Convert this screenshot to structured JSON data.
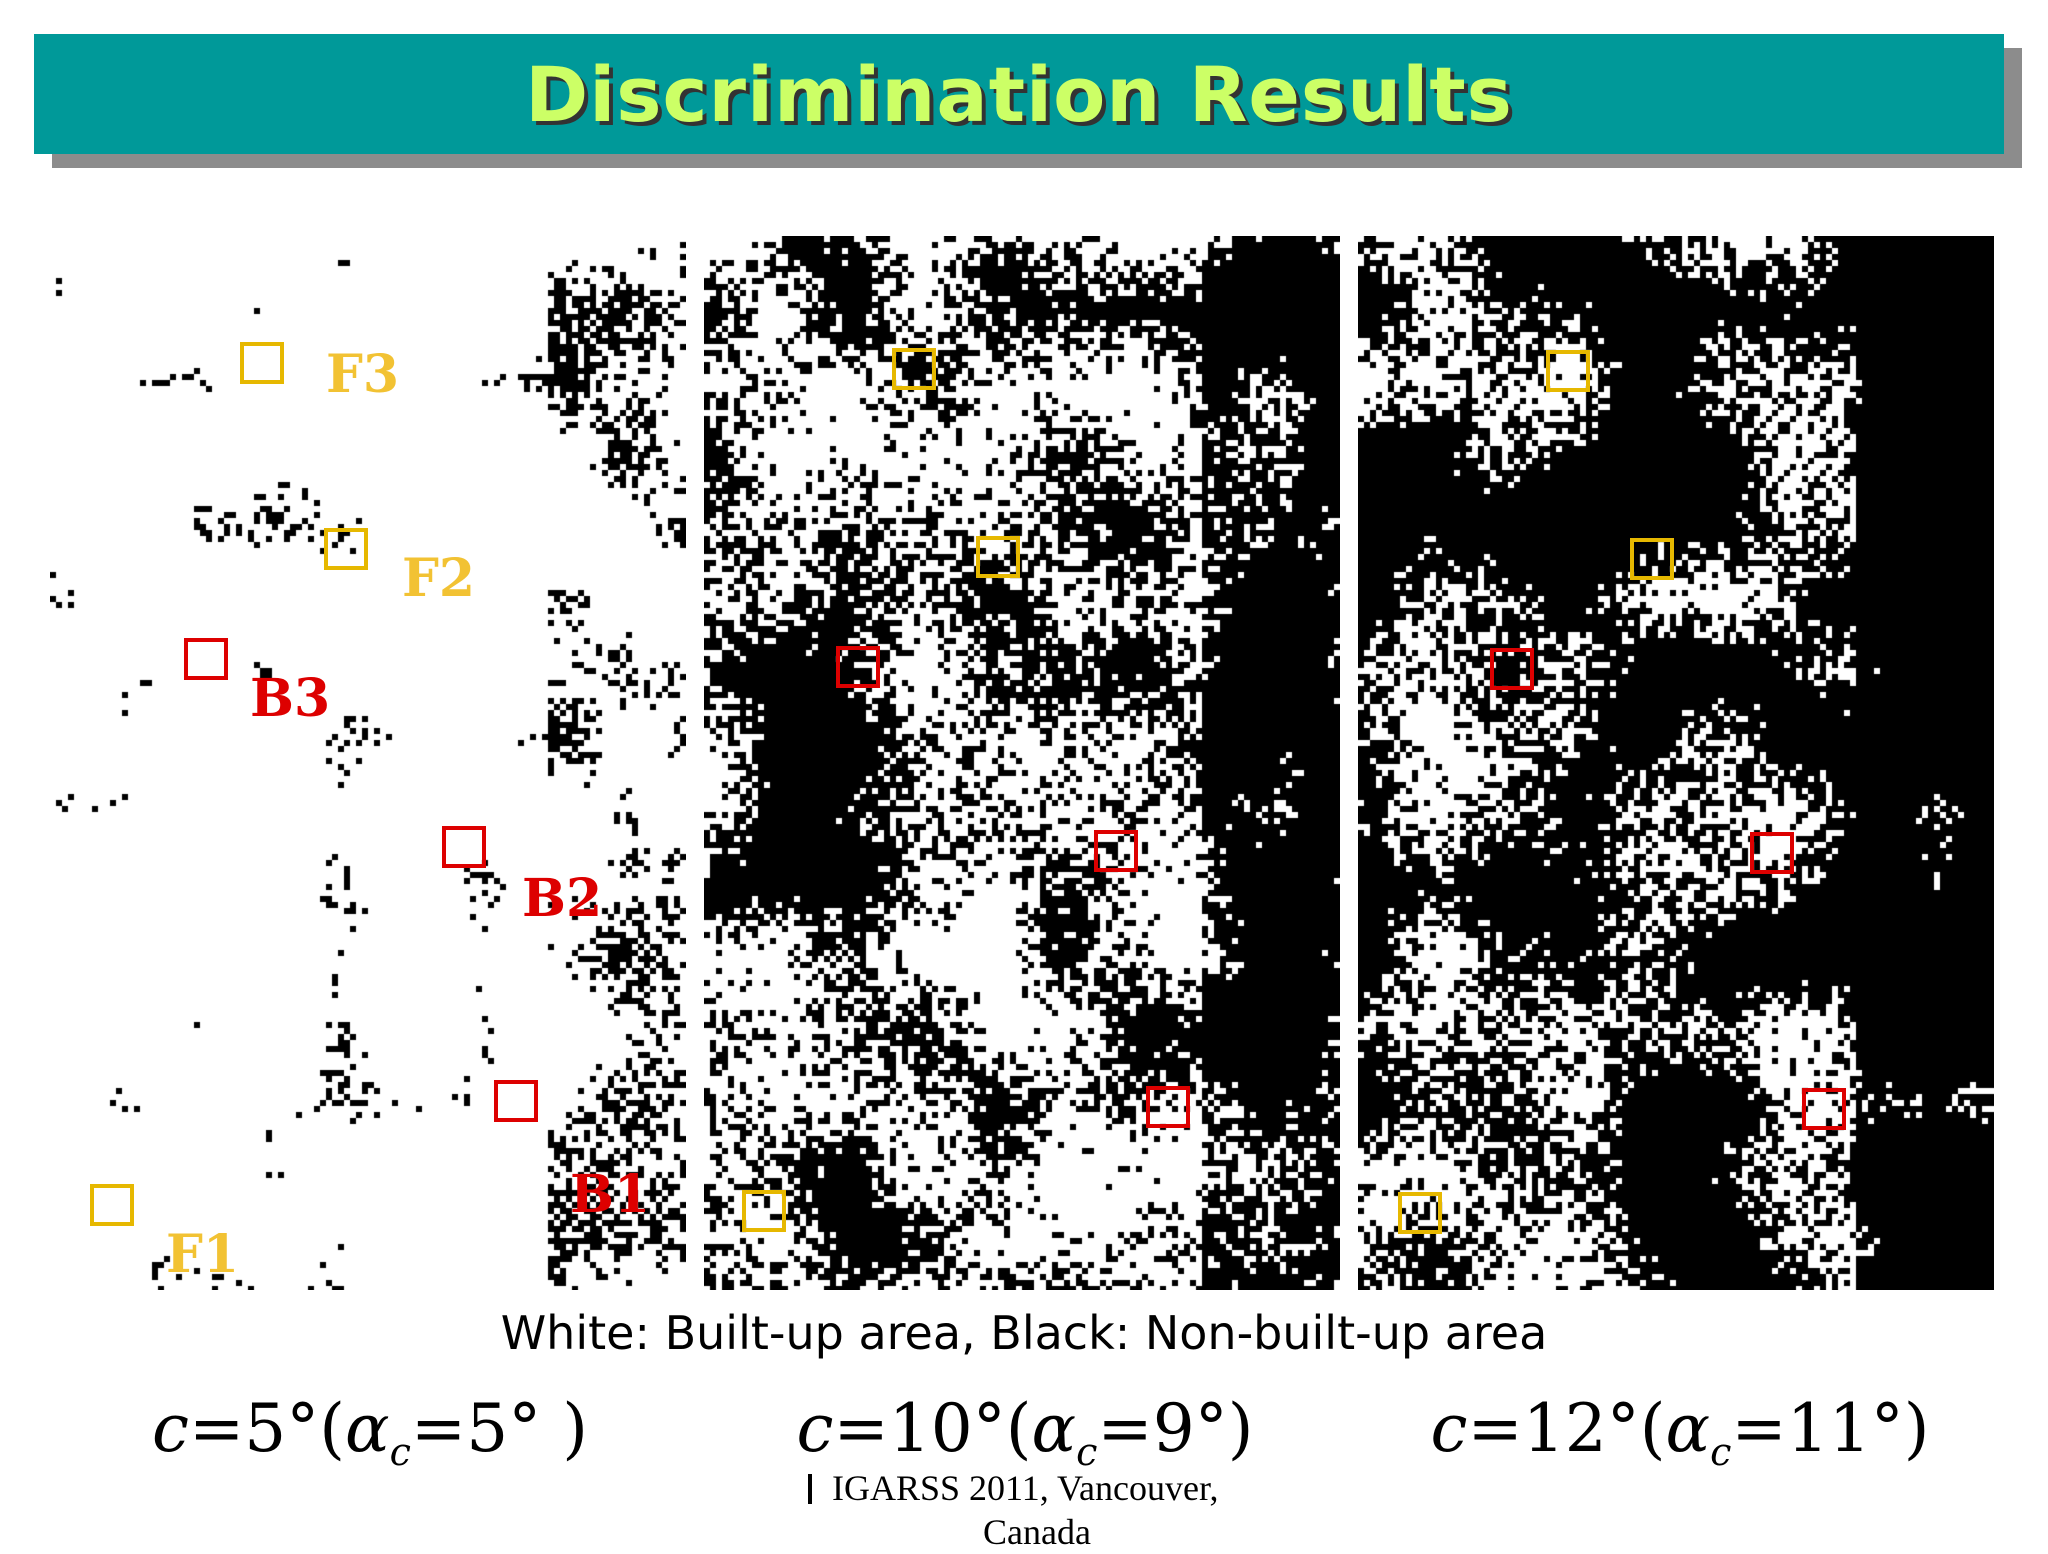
{
  "title": "Discrimination Results",
  "legend": "White: Built-up area,  Black: Non-built-up area",
  "colors": {
    "title_bg": "#009999",
    "title_text": "#ccff66",
    "forest_box": "#e6b800",
    "building_box": "#dd0000",
    "built_up": "#ffffff",
    "non_built_up": "#000000"
  },
  "panels": [
    {
      "caption": {
        "c": "c",
        "c_value": "=5°(",
        "alpha": "α",
        "sub": "c",
        "alpha_value": "=5° )"
      },
      "black_fraction": 0.18,
      "labels": [
        {
          "text": "F3",
          "type": "forest"
        },
        {
          "text": "F2",
          "type": "forest"
        },
        {
          "text": "B3",
          "type": "building"
        },
        {
          "text": "B2",
          "type": "building"
        },
        {
          "text": "B1",
          "type": "building"
        },
        {
          "text": "F1",
          "type": "forest"
        }
      ]
    },
    {
      "caption": {
        "c": "c",
        "c_value": "=10°(",
        "alpha": "α",
        "sub": "c",
        "alpha_value": "=9°)"
      },
      "black_fraction": 0.5
    },
    {
      "caption": {
        "c": "c",
        "c_value": "=12°(",
        "alpha": "α",
        "sub": "c",
        "alpha_value": "=11°)"
      },
      "black_fraction": 0.58
    }
  ],
  "footer": {
    "line1": "IGARSS 2011, Vancouver,",
    "line2": "Canada"
  }
}
